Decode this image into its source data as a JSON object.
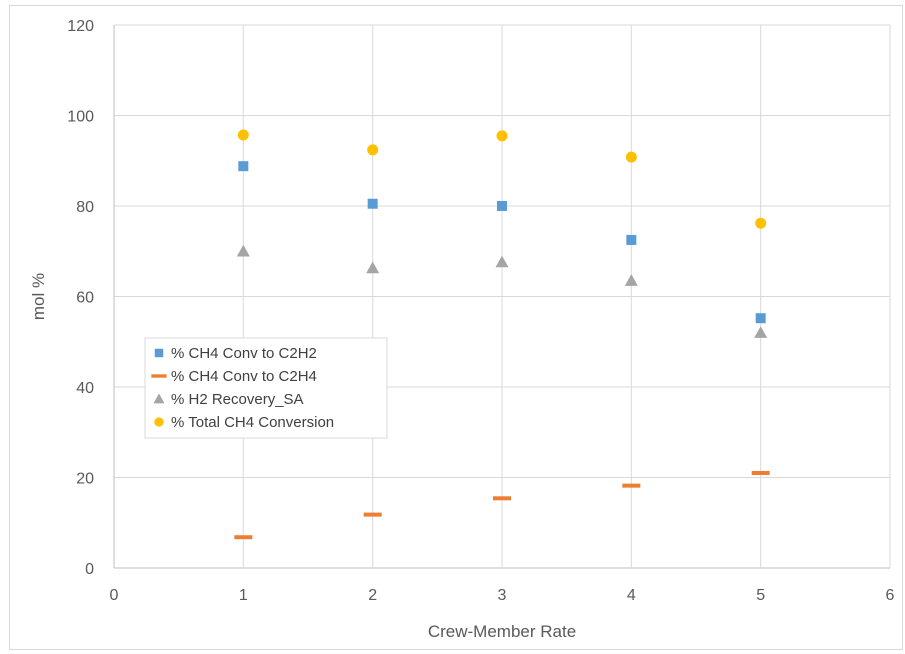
{
  "chart_data": {
    "type": "scatter",
    "title": "",
    "xlabel": "Crew-Member Rate",
    "ylabel": "mol %",
    "xlim": [
      0,
      6
    ],
    "ylim": [
      0,
      120
    ],
    "xticks": [
      0,
      1,
      2,
      3,
      4,
      5,
      6
    ],
    "yticks": [
      0,
      20,
      40,
      60,
      80,
      100,
      120
    ],
    "grid": true,
    "legend_position": "left-middle",
    "series": [
      {
        "name": "% CH4 Conv to C2H2",
        "marker": "square",
        "color": "#5B9BD5",
        "x": [
          1,
          2,
          3,
          4,
          5
        ],
        "y": [
          88.8,
          80.5,
          80.0,
          72.5,
          55.2
        ]
      },
      {
        "name": "% CH4 Conv to C2H4",
        "marker": "dash",
        "color": "#ED7D31",
        "x": [
          1,
          2,
          3,
          4,
          5
        ],
        "y": [
          6.8,
          11.8,
          15.4,
          18.2,
          21.0
        ]
      },
      {
        "name": "% H2 Recovery_SA",
        "marker": "triangle",
        "color": "#A5A5A5",
        "x": [
          1,
          2,
          3,
          4,
          5
        ],
        "y": [
          70.0,
          66.3,
          67.6,
          63.5,
          52.0
        ]
      },
      {
        "name": "% Total CH4 Conversion",
        "marker": "circle",
        "color": "#FFC000",
        "x": [
          1,
          2,
          3,
          4,
          5
        ],
        "y": [
          95.7,
          92.4,
          95.5,
          90.8,
          76.2
        ]
      }
    ]
  }
}
